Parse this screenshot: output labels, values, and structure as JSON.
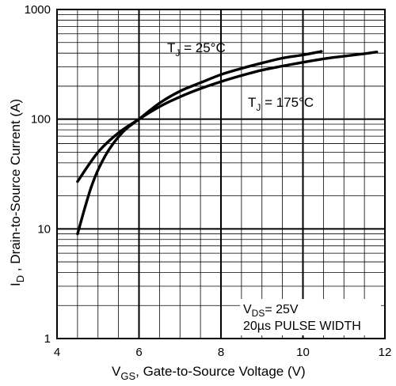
{
  "chart_data": {
    "type": "line",
    "xlabel_main": "V",
    "xlabel_sub": "GS",
    "xlabel_rest": ", Gate-to-Source Voltage (V)",
    "ylabel_main": "I",
    "ylabel_sub": "D",
    "ylabel_rest": " ,  Drain-to-Source Current  (A)",
    "xlim": [
      4,
      12
    ],
    "ylim": [
      1,
      1000
    ],
    "yscale": "log",
    "grid": true,
    "x_ticks": [
      "4",
      "6",
      "8",
      "10",
      "12"
    ],
    "y_ticks": [
      "1",
      "10",
      "100",
      "1000"
    ],
    "series": [
      {
        "name_main": "T",
        "name_sub": "J",
        "name_rest": " = 25°C",
        "x": [
          4.5,
          4.85,
          5.2,
          5.6,
          6.0,
          6.5,
          7.0,
          7.5,
          8.0,
          8.5,
          9.0,
          9.5,
          10.0,
          10.45
        ],
        "y": [
          9,
          25,
          48,
          76,
          100,
          140,
          180,
          215,
          255,
          290,
          325,
          360,
          385,
          415
        ]
      },
      {
        "name_main": "T",
        "name_sub": "J",
        "name_rest": " = 175°C",
        "x": [
          4.5,
          5.0,
          5.5,
          6.0,
          6.5,
          7.0,
          7.5,
          8.0,
          8.5,
          9.0,
          9.5,
          10.0,
          10.5,
          11.0,
          11.5,
          11.8
        ],
        "y": [
          27,
          50,
          75,
          100,
          130,
          160,
          190,
          220,
          250,
          280,
          305,
          330,
          355,
          375,
          395,
          410
        ]
      }
    ],
    "annotation": {
      "line1_main": "V",
      "line1_sub": "DS",
      "line1_rest": "= 25V",
      "line2": "20µs PULSE WIDTH"
    }
  }
}
